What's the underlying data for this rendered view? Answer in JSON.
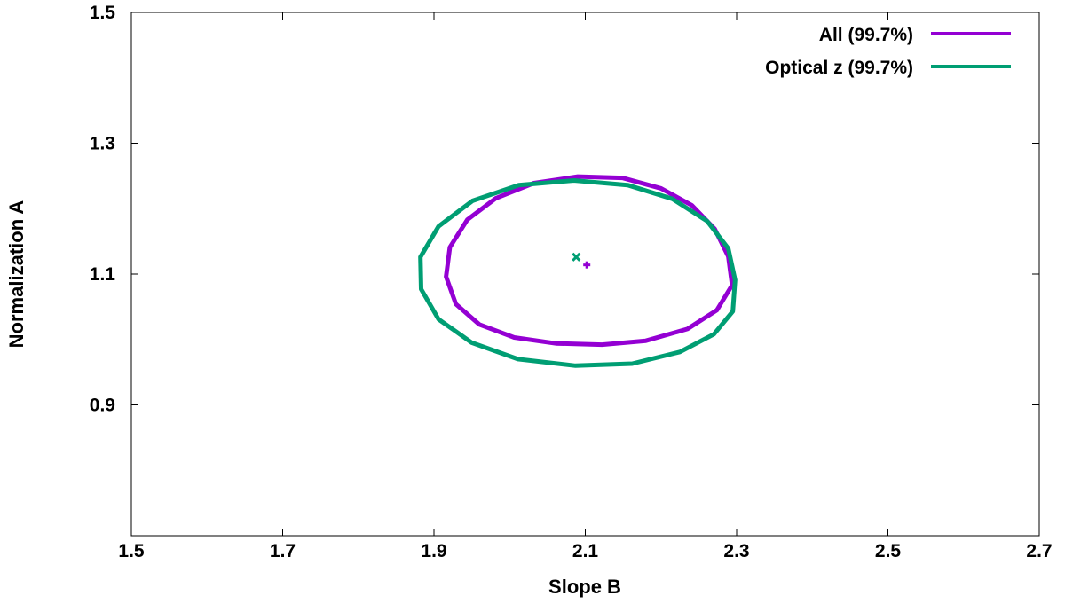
{
  "chart_data": {
    "type": "scatter",
    "xlabel": "Slope B",
    "ylabel": "Normalization A",
    "xlim": [
      1.5,
      2.7
    ],
    "ylim": [
      0.7,
      1.5
    ],
    "xticks": [
      "1.5",
      "1.7",
      "1.9",
      "2.1",
      "2.3",
      "2.5",
      "2.7"
    ],
    "yticks": [
      "0.9",
      "1.1",
      "1.3",
      "1.5"
    ],
    "xtick_values": [
      1.5,
      1.7,
      1.9,
      2.1,
      2.3,
      2.5,
      2.7
    ],
    "ytick_values": [
      0.9,
      1.1,
      1.3,
      1.5
    ],
    "grid": false,
    "legend_position": "top-right",
    "series": [
      {
        "name": "All (99.7%)",
        "color": "#9400d3",
        "best_fit": {
          "x": 2.102,
          "y": 1.114
        },
        "contour": [
          [
            2.294,
            1.083
          ],
          [
            2.289,
            1.127
          ],
          [
            2.271,
            1.169
          ],
          [
            2.241,
            1.205
          ],
          [
            2.2,
            1.231
          ],
          [
            2.149,
            1.247
          ],
          [
            2.09,
            1.249
          ],
          [
            2.032,
            1.239
          ],
          [
            1.982,
            1.216
          ],
          [
            1.944,
            1.183
          ],
          [
            1.921,
            1.141
          ],
          [
            1.916,
            1.096
          ],
          [
            1.929,
            1.054
          ],
          [
            1.96,
            1.023
          ],
          [
            2.006,
            1.003
          ],
          [
            2.061,
            0.994
          ],
          [
            2.122,
            0.992
          ],
          [
            2.18,
            0.998
          ],
          [
            2.235,
            1.016
          ],
          [
            2.274,
            1.045
          ]
        ]
      },
      {
        "name": "Optical z (99.7%)",
        "color": "#009e73",
        "best_fit": {
          "x": 2.088,
          "y": 1.126
        },
        "contour": [
          [
            2.298,
            1.091
          ],
          [
            2.289,
            1.139
          ],
          [
            2.261,
            1.181
          ],
          [
            2.215,
            1.215
          ],
          [
            2.156,
            1.236
          ],
          [
            2.085,
            1.243
          ],
          [
            2.012,
            1.236
          ],
          [
            1.951,
            1.212
          ],
          [
            1.906,
            1.173
          ],
          [
            1.882,
            1.126
          ],
          [
            1.883,
            1.077
          ],
          [
            1.906,
            1.031
          ],
          [
            1.95,
            0.995
          ],
          [
            2.011,
            0.97
          ],
          [
            2.087,
            0.96
          ],
          [
            2.162,
            0.963
          ],
          [
            2.225,
            0.981
          ],
          [
            2.27,
            1.008
          ],
          [
            2.295,
            1.043
          ]
        ]
      }
    ]
  }
}
